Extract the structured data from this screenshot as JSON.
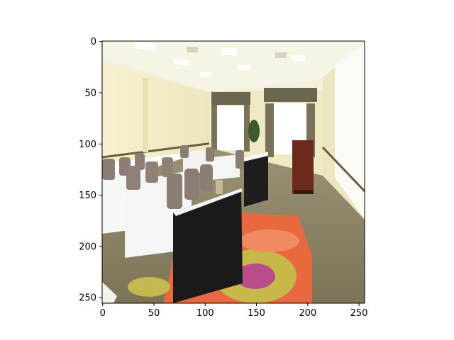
{
  "figure": {
    "x_ticks": [
      "0",
      "50",
      "100",
      "150",
      "200",
      "250"
    ],
    "y_ticks": [
      "0",
      "50",
      "100",
      "150",
      "200",
      "250"
    ],
    "x_tick_values": [
      0,
      50,
      100,
      150,
      200,
      250
    ],
    "y_tick_values": [
      0,
      50,
      100,
      150,
      200,
      250
    ],
    "xlim": [
      -0.5,
      255.5
    ],
    "ylim": [
      255.5,
      -0.5
    ],
    "image_content": "conference-room-photo"
  },
  "colors": {
    "ceiling": "#f2efd8",
    "wall": "#f0ecc6",
    "carpet": "#8a8268",
    "rug_flower": "#e86a3e",
    "table_black": "#1a1a1a",
    "tablecloth_white": "#f5f5f5",
    "chair": "#8a7d74",
    "podium": "#6b2a1c"
  }
}
